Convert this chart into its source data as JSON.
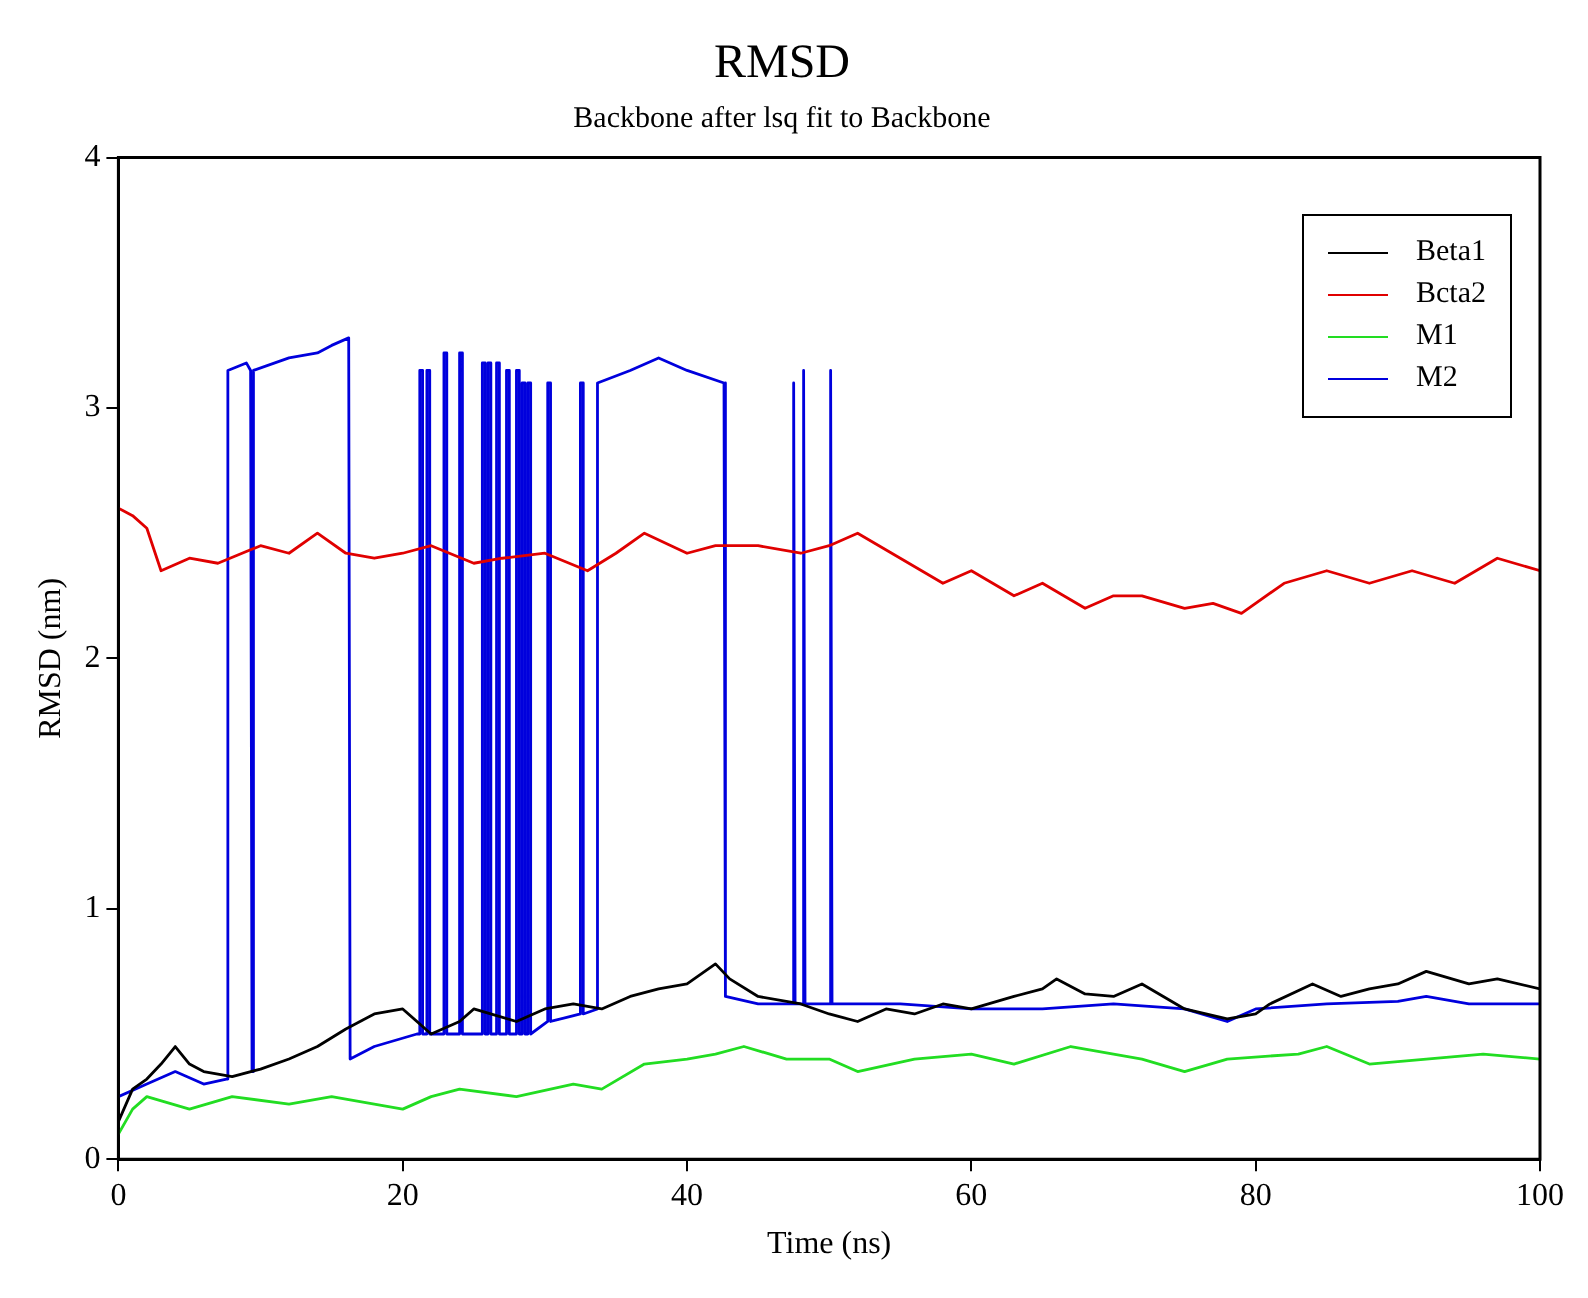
{
  "chart_data": {
    "type": "line",
    "title": "RMSD",
    "subtitle": "Backbone after lsq fit to Backbone",
    "xlabel": "Time (ns)",
    "ylabel": "RMSD (nm)",
    "xlim": [
      0,
      100
    ],
    "xticks": [
      0,
      20,
      40,
      60,
      80,
      100
    ],
    "ylim": [
      0,
      4
    ],
    "yticks": [
      0,
      1,
      2,
      3,
      4
    ],
    "legend": "top right",
    "marker": "none",
    "line_style": "solid",
    "series": [
      {
        "name": "Beta1",
        "color": "#000000",
        "x": [
          0,
          1,
          2,
          3,
          4,
          5,
          6,
          8,
          10,
          12,
          14,
          16,
          18,
          20,
          22,
          24,
          25,
          28,
          30,
          32,
          34,
          36,
          38,
          40,
          42,
          43,
          45,
          48,
          50,
          52,
          54,
          56,
          58,
          60,
          63,
          65,
          66,
          68,
          70,
          72,
          75,
          78,
          80,
          81,
          84,
          86,
          88,
          90,
          92,
          95,
          97,
          100
        ],
        "values": [
          0.15,
          0.28,
          0.32,
          0.38,
          0.45,
          0.38,
          0.35,
          0.33,
          0.36,
          0.4,
          0.45,
          0.52,
          0.58,
          0.6,
          0.5,
          0.55,
          0.6,
          0.55,
          0.6,
          0.62,
          0.6,
          0.65,
          0.68,
          0.7,
          0.78,
          0.72,
          0.65,
          0.62,
          0.58,
          0.55,
          0.6,
          0.58,
          0.62,
          0.6,
          0.65,
          0.68,
          0.72,
          0.66,
          0.65,
          0.7,
          0.6,
          0.56,
          0.58,
          0.62,
          0.7,
          0.65,
          0.68,
          0.7,
          0.75,
          0.7,
          0.72,
          0.68
        ]
      },
      {
        "name": "Bcta2",
        "color": "#e00000",
        "x": [
          0,
          1,
          2,
          3,
          5,
          7,
          10,
          12,
          14,
          16,
          18,
          20,
          22,
          25,
          27,
          30,
          33,
          35,
          37,
          40,
          42,
          45,
          48,
          50,
          52,
          55,
          58,
          60,
          63,
          65,
          68,
          70,
          72,
          75,
          77,
          79,
          82,
          85,
          88,
          91,
          94,
          97,
          100
        ],
        "values": [
          2.6,
          2.57,
          2.52,
          2.35,
          2.4,
          2.38,
          2.45,
          2.42,
          2.5,
          2.42,
          2.4,
          2.42,
          2.45,
          2.38,
          2.4,
          2.42,
          2.35,
          2.42,
          2.5,
          2.42,
          2.45,
          2.45,
          2.42,
          2.45,
          2.5,
          2.4,
          2.3,
          2.35,
          2.25,
          2.3,
          2.2,
          2.25,
          2.25,
          2.2,
          2.22,
          2.18,
          2.3,
          2.35,
          2.3,
          2.35,
          2.3,
          2.4,
          2.35
        ]
      },
      {
        "name": "M1",
        "color": "#22dd22",
        "x": [
          0,
          1,
          2,
          5,
          8,
          12,
          15,
          18,
          20,
          22,
          24,
          28,
          32,
          34,
          37,
          40,
          42,
          44,
          47,
          50,
          52,
          56,
          60,
          63,
          67,
          70,
          72,
          75,
          78,
          83,
          85,
          88,
          92,
          96,
          100
        ],
        "values": [
          0.1,
          0.2,
          0.25,
          0.2,
          0.25,
          0.22,
          0.25,
          0.22,
          0.2,
          0.25,
          0.28,
          0.25,
          0.3,
          0.28,
          0.38,
          0.4,
          0.42,
          0.45,
          0.4,
          0.4,
          0.35,
          0.4,
          0.42,
          0.38,
          0.45,
          0.42,
          0.4,
          0.35,
          0.4,
          0.42,
          0.45,
          0.38,
          0.4,
          0.42,
          0.4
        ]
      },
      {
        "name": "M2",
        "color": "#0000dd",
        "x": [
          0,
          2,
          4,
          6,
          7.6,
          7.7,
          9,
          9.3,
          9.4,
          9.5,
          12,
          14,
          15,
          16.2,
          16.3,
          18,
          21,
          21.2,
          21.2,
          21.4,
          21.4,
          21.7,
          21.7,
          21.9,
          21.9,
          22.9,
          22.9,
          23.1,
          23.1,
          24,
          24,
          24.2,
          24.2,
          25.6,
          25.6,
          25.8,
          25.8,
          26,
          26,
          26.2,
          26.2,
          26.6,
          26.6,
          26.8,
          26.8,
          27.3,
          27.3,
          27.5,
          27.5,
          28,
          28,
          28.2,
          28.2,
          28.4,
          28.4,
          28.6,
          28.6,
          28.8,
          28.8,
          29,
          29,
          30.2,
          30.2,
          30.4,
          30.4,
          32.5,
          32.5,
          32.7,
          32.7,
          33.7,
          33.7,
          36,
          38,
          40,
          42.6,
          42.7,
          45,
          47.5,
          47.5,
          47.6,
          48.2,
          48.2,
          48.3,
          50.1,
          50.1,
          50.2,
          55,
          60,
          65,
          70,
          75,
          78,
          80,
          85,
          90,
          92,
          95,
          100
        ],
        "values": [
          0.25,
          0.3,
          0.35,
          0.3,
          0.32,
          3.15,
          3.18,
          3.15,
          0.35,
          3.15,
          3.2,
          3.22,
          3.25,
          3.28,
          0.4,
          0.45,
          0.5,
          0.5,
          3.15,
          3.15,
          0.5,
          0.5,
          3.15,
          3.15,
          0.5,
          0.5,
          3.22,
          3.22,
          0.5,
          0.5,
          3.22,
          3.22,
          0.5,
          0.5,
          3.18,
          3.18,
          0.5,
          0.5,
          3.18,
          3.18,
          0.5,
          0.5,
          3.18,
          3.18,
          0.5,
          0.5,
          3.15,
          3.15,
          0.5,
          0.5,
          3.15,
          3.15,
          0.5,
          0.5,
          3.1,
          3.1,
          0.5,
          0.5,
          3.1,
          3.1,
          0.5,
          0.55,
          3.1,
          3.1,
          0.55,
          0.58,
          3.1,
          3.1,
          0.58,
          0.6,
          3.1,
          3.15,
          3.2,
          3.15,
          3.1,
          0.65,
          0.62,
          0.62,
          3.1,
          0.62,
          0.62,
          3.15,
          0.62,
          0.62,
          3.15,
          0.62,
          0.62,
          0.6,
          0.6,
          0.62,
          0.6,
          0.55,
          0.6,
          0.62,
          0.63,
          0.65,
          0.62,
          0.62
        ]
      }
    ]
  }
}
